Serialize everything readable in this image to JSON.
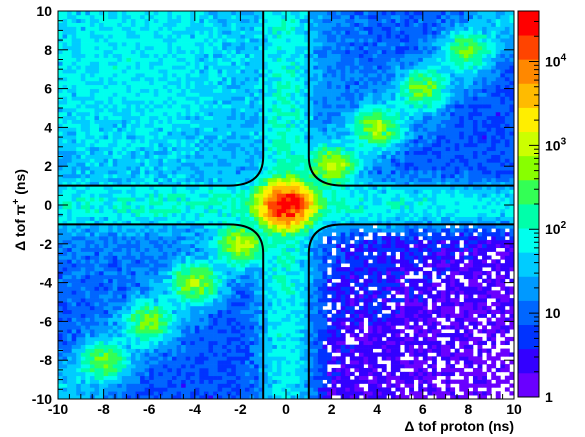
{
  "chart_data": {
    "type": "heatmap",
    "title": "",
    "xlabel": "Δ tof proton (ns)",
    "ylabel_main": "Δ tof π",
    "ylabel_sup": "+",
    "ylabel_tail": " (ns)",
    "xlim": [
      -10,
      10
    ],
    "ylim": [
      -10,
      10
    ],
    "x_ticks": [
      "-10",
      "-8",
      "-6",
      "-4",
      "-2",
      "0",
      "2",
      "4",
      "6",
      "8",
      "10"
    ],
    "y_ticks": [
      "-10",
      "-8",
      "-6",
      "-4",
      "-2",
      "0",
      "2",
      "4",
      "6",
      "8",
      "10"
    ],
    "bins": 100,
    "colorbar": {
      "scale": "log",
      "range": [
        1,
        40000
      ],
      "ticks": [
        {
          "label": "1",
          "exp": "",
          "value": 1
        },
        {
          "label": "10",
          "exp": "",
          "value": 10
        },
        {
          "label": "10",
          "exp": "2",
          "value": 100
        },
        {
          "label": "10",
          "exp": "3",
          "value": 1000
        },
        {
          "label": "10",
          "exp": "4",
          "value": 10000
        }
      ]
    },
    "colors": [
      "#6a00ff",
      "#3300ff",
      "#0033ff",
      "#0066ff",
      "#0099ff",
      "#00ccff",
      "#00ffee",
      "#00ffaa",
      "#33ff55",
      "#88ff00",
      "#ccff00",
      "#ffee00",
      "#ffbb00",
      "#ff8800",
      "#ff4400",
      "#ff0000"
    ],
    "peaks": [
      {
        "x": 0,
        "y": 0,
        "counts": 30000
      },
      {
        "x": 2,
        "y": 2,
        "counts": 800
      },
      {
        "x": 4,
        "y": 4,
        "counts": 600
      },
      {
        "x": 6,
        "y": 6,
        "counts": 450
      },
      {
        "x": 8,
        "y": 8,
        "counts": 350
      },
      {
        "x": -2,
        "y": -2,
        "counts": 800
      },
      {
        "x": -4,
        "y": -4,
        "counts": 600
      },
      {
        "x": -6,
        "y": -6,
        "counts": 450
      },
      {
        "x": -8,
        "y": -8,
        "counts": 350
      }
    ],
    "cut_contours": {
      "color": "#000000",
      "half_width": 1,
      "corner_radius": 1.5,
      "quadrants": [
        "top-left",
        "top-right",
        "bottom-left",
        "bottom-right"
      ]
    }
  }
}
